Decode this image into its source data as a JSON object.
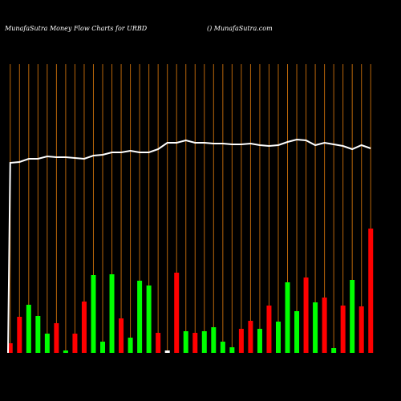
{
  "chart_data": {
    "type": "bar",
    "title": "MunafaSutra  Money Flow  Charts for URBD",
    "subtitle": "() MunafaSutra.com",
    "background": "#000000",
    "grid": true,
    "grid_color": "#b8650a",
    "ylim": [
      0,
      360
    ],
    "categories": [
      null,
      null,
      null,
      null,
      null,
      null,
      null,
      null,
      null,
      null,
      null,
      null,
      null,
      null,
      null,
      null,
      null,
      null,
      null,
      null,
      null,
      null,
      null,
      null,
      null,
      null,
      null,
      null,
      null,
      null,
      null,
      null,
      null,
      null,
      null,
      null,
      null,
      null,
      null,
      null
    ],
    "series": [
      {
        "type": "bar",
        "values": [
          12,
          45,
          60,
          46,
          24,
          37,
          3,
          24,
          64,
          97,
          14,
          98,
          43,
          19,
          90,
          84,
          25,
          3,
          100,
          27,
          25,
          27,
          32,
          14,
          7,
          30,
          40,
          30,
          59,
          39,
          88,
          52,
          94,
          63,
          69,
          6,
          59,
          91,
          58,
          155
        ],
        "colors": [
          "#ff0000",
          "#ff0000",
          "#00ff00",
          "#00ff00",
          "#00ff00",
          "#ff0000",
          "#00ff00",
          "#ff0000",
          "#ff0000",
          "#00ff00",
          "#00ff00",
          "#00ff00",
          "#ff0000",
          "#00ff00",
          "#00ff00",
          "#00ff00",
          "#ff0000",
          "#ffffff",
          "#ff0000",
          "#00ff00",
          "#ff0000",
          "#00ff00",
          "#00ff00",
          "#00ff00",
          "#00ff00",
          "#ff0000",
          "#ff0000",
          "#00ff00",
          "#ff0000",
          "#00ff00",
          "#00ff00",
          "#00ff00",
          "#ff0000",
          "#00ff00",
          "#ff0000",
          "#00ff00",
          "#ff0000",
          "#00ff00",
          "#ff0000",
          "#ff0000"
        ]
      },
      {
        "type": "line",
        "color": "#ffffff",
        "values": [
          237,
          238,
          242,
          242,
          245,
          244,
          244,
          243,
          242,
          246,
          247,
          250,
          250,
          252,
          250,
          250,
          254,
          262,
          262,
          265,
          262,
          262,
          261,
          261,
          260,
          260,
          261,
          259,
          258,
          259,
          263,
          266,
          265,
          259,
          262,
          260,
          258,
          254,
          259,
          255
        ]
      }
    ]
  }
}
